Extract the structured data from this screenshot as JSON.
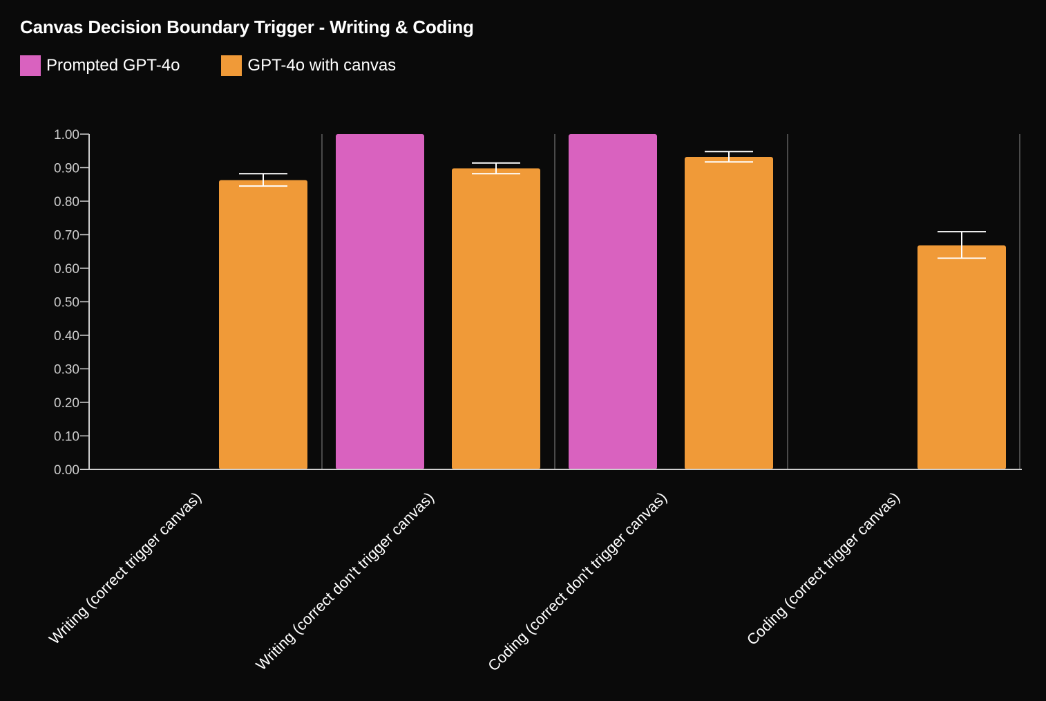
{
  "chart_data": {
    "type": "bar",
    "title": "Canvas Decision Boundary Trigger - Writing & Coding",
    "xlabel": "",
    "ylabel": "",
    "ylim": [
      0,
      1
    ],
    "yticks": [
      "0.00",
      "0.10",
      "0.20",
      "0.30",
      "0.40",
      "0.50",
      "0.60",
      "0.70",
      "0.80",
      "0.90",
      "1.00"
    ],
    "categories": [
      "Writing (correct trigger canvas)",
      "Writing (correct don't trigger canvas)",
      "Coding (correct don't trigger canvas)",
      "Coding (correct trigger canvas)"
    ],
    "series": [
      {
        "name": "Prompted GPT-4o",
        "color": "#d962bf",
        "values": [
          0.0,
          1.0,
          1.0,
          0.0
        ],
        "error": [
          null,
          null,
          null,
          null
        ]
      },
      {
        "name": "GPT-4o with canvas",
        "color": "#f09a38",
        "values": [
          0.863,
          0.898,
          0.932,
          0.668
        ],
        "error": [
          [
            0.845,
            0.882
          ],
          [
            0.882,
            0.914
          ],
          [
            0.917,
            0.948
          ],
          [
            0.63,
            0.709
          ]
        ]
      }
    ],
    "legend_position": "top-left",
    "grid": false,
    "background": "#0a0a0a"
  }
}
